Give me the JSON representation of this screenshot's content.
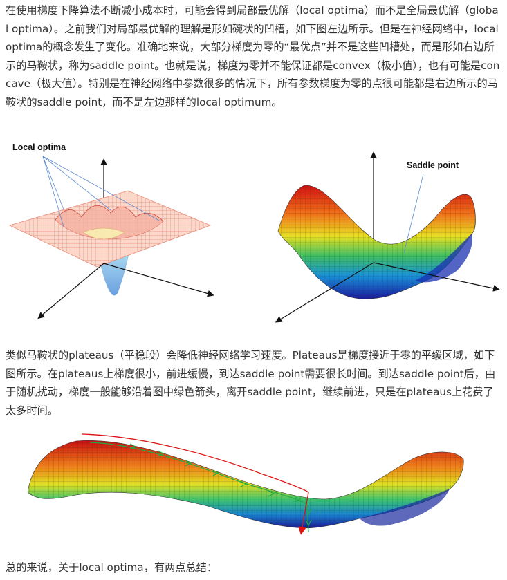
{
  "paragraphs": {
    "p1": "在使用梯度下降算法不断减小成本时，可能会得到局部最优解（local optima）而不是全局最优解（global optima）。之前我们对局部最优解的理解是形如碗状的凹槽，如下图左边所示。但是在神经网络中，local optima的概念发生了变化。准确地来说，大部分梯度为零的“最优点”并不是这些凹槽处，而是形如右边所示的马鞍状，称为saddle point。也就是说，梯度为零并不能保证都是convex（极小值），也有可能是concave（极大值）。特别是在神经网络中参数很多的情况下，所有参数梯度为零的点很可能都是右边所示的马鞍状的saddle point，而不是左边那样的local optimum。",
    "p2": "类似马鞍状的plateaus（平稳段）会降低神经网络学习速度。Plateaus是梯度接近于零的平缓区域，如下图所示。在plateaus上梯度很小，前进缓慢，到达saddle point需要很长时间。到达saddle point后，由于随机扰动，梯度一般能够沿着图中绿色箭头，离开saddle point，继续前进，只是在plateaus上花费了太多时间。",
    "p3": "总的来说，关于local optima，有两点总结："
  },
  "figures": {
    "left_label": "Local optima",
    "right_label": "Saddle point"
  },
  "colors": {
    "text": "#333333",
    "mesh_left": "#f08c78",
    "arrow_green": "#22aa44",
    "arrow_red": "#dd1111"
  }
}
